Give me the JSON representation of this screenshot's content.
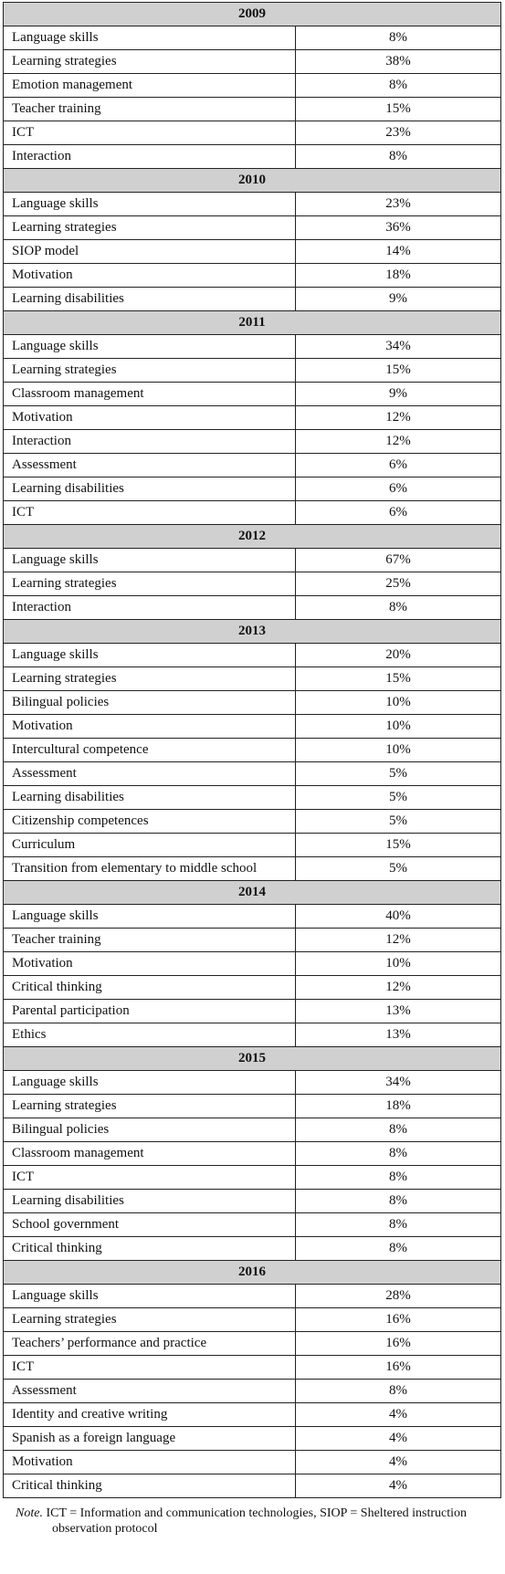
{
  "sections": [
    {
      "year": "2009",
      "rows": [
        [
          "Language skills",
          "8%"
        ],
        [
          "Learning strategies",
          "38%"
        ],
        [
          "Emotion management",
          "8%"
        ],
        [
          "Teacher training",
          "15%"
        ],
        [
          "ICT",
          "23%"
        ],
        [
          "Interaction",
          "8%"
        ]
      ]
    },
    {
      "year": "2010",
      "rows": [
        [
          "Language skills",
          "23%"
        ],
        [
          "Learning strategies",
          "36%"
        ],
        [
          "SIOP model",
          "14%"
        ],
        [
          "Motivation",
          "18%"
        ],
        [
          "Learning disabilities",
          "9%"
        ]
      ]
    },
    {
      "year": "2011",
      "rows": [
        [
          "Language skills",
          "34%"
        ],
        [
          "Learning strategies",
          "15%"
        ],
        [
          "Classroom management",
          "9%"
        ],
        [
          "Motivation",
          "12%"
        ],
        [
          "Interaction",
          "12%"
        ],
        [
          "Assessment",
          "6%"
        ],
        [
          "Learning disabilities",
          "6%"
        ],
        [
          "ICT",
          "6%"
        ]
      ]
    },
    {
      "year": "2012",
      "rows": [
        [
          "Language skills",
          "67%"
        ],
        [
          "Learning strategies",
          "25%"
        ],
        [
          "Interaction",
          "8%"
        ]
      ]
    },
    {
      "year": "2013",
      "rows": [
        [
          "Language skills",
          "20%"
        ],
        [
          "Learning strategies",
          "15%"
        ],
        [
          "Bilingual policies",
          "10%"
        ],
        [
          "Motivation",
          "10%"
        ],
        [
          "Intercultural competence",
          "10%"
        ],
        [
          "Assessment",
          "5%"
        ],
        [
          "Learning disabilities",
          "5%"
        ],
        [
          "Citizenship competences",
          "5%"
        ],
        [
          "Curriculum",
          "15%"
        ],
        [
          "Transition from elementary to middle school",
          "5%"
        ]
      ]
    },
    {
      "year": "2014",
      "rows": [
        [
          "Language skills",
          "40%"
        ],
        [
          "Teacher training",
          "12%"
        ],
        [
          "Motivation",
          "10%"
        ],
        [
          "Critical thinking",
          "12%"
        ],
        [
          "Parental participation",
          "13%"
        ],
        [
          "Ethics",
          "13%"
        ]
      ]
    },
    {
      "year": "2015",
      "rows": [
        [
          "Language skills",
          "34%"
        ],
        [
          "Learning strategies",
          "18%"
        ],
        [
          "Bilingual policies",
          "8%"
        ],
        [
          "Classroom management",
          "8%"
        ],
        [
          "ICT",
          "8%"
        ],
        [
          "Learning disabilities",
          "8%"
        ],
        [
          "School government",
          "8%"
        ],
        [
          "Critical thinking",
          "8%"
        ]
      ]
    },
    {
      "year": "2016",
      "rows": [
        [
          "Language skills",
          "28%"
        ],
        [
          "Learning strategies",
          "16%"
        ],
        [
          "Teachers’ performance and practice",
          "16%"
        ],
        [
          "ICT",
          "16%"
        ],
        [
          "Assessment",
          "8%"
        ],
        [
          "Identity and creative writing",
          "4%"
        ],
        [
          "Spanish as a foreign language",
          "4%"
        ],
        [
          "Motivation",
          "4%"
        ],
        [
          "Critical thinking",
          "4%"
        ]
      ]
    }
  ],
  "note": {
    "label": "Note.",
    "text": "ICT = Information and communication technologies, SIOP = Sheltered instruction observation protocol"
  }
}
